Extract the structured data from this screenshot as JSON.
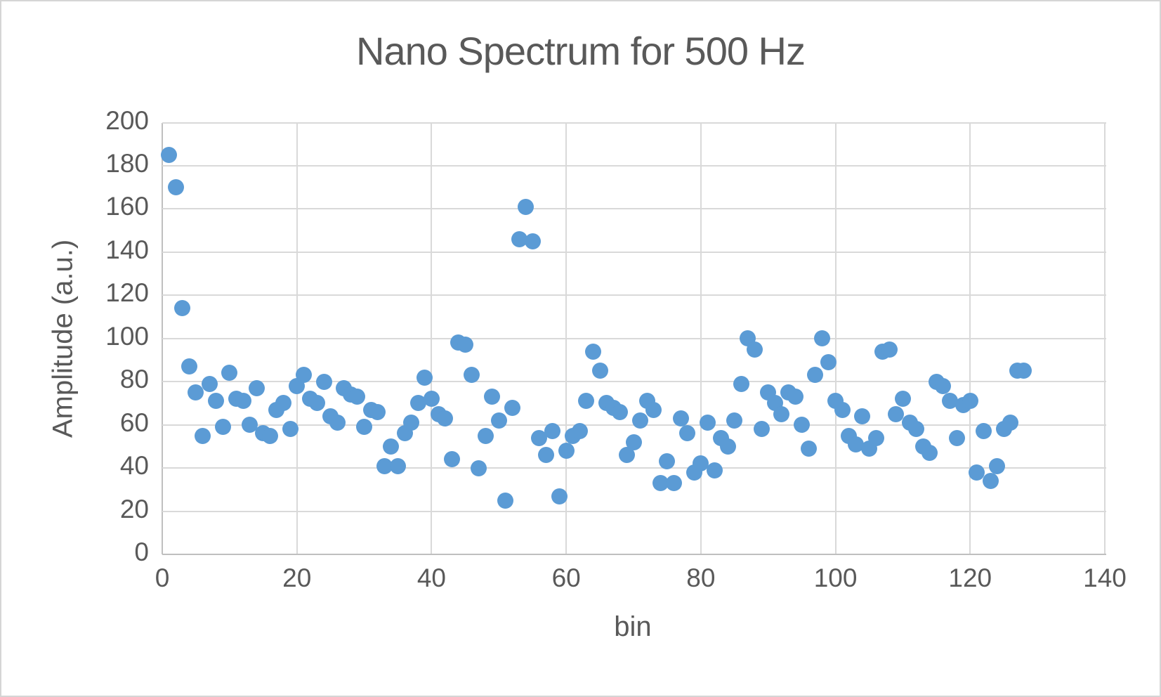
{
  "window": {
    "background": "#ffffff",
    "border_color": "#d5d5d5"
  },
  "chart_data": {
    "type": "scatter",
    "title": "Nano Spectrum for 500 Hz",
    "xlabel": "bin",
    "ylabel": "Amplitude (a.u.)",
    "xlim": [
      0,
      140
    ],
    "ylim": [
      0,
      200
    ],
    "x_ticks": [
      0,
      20,
      40,
      60,
      80,
      100,
      120,
      140
    ],
    "y_ticks": [
      0,
      20,
      40,
      60,
      80,
      100,
      120,
      140,
      160,
      180,
      200
    ],
    "grid": true,
    "legend_position": "none",
    "marker_color": "#5b9bd5",
    "text_color": "#595959",
    "gridline_color": "#d9d9d9",
    "axisline_color": "#bfbfbf",
    "x": [
      1,
      2,
      3,
      4,
      5,
      6,
      7,
      8,
      9,
      10,
      11,
      12,
      13,
      14,
      15,
      16,
      17,
      18,
      19,
      20,
      21,
      22,
      23,
      24,
      25,
      26,
      27,
      28,
      29,
      30,
      31,
      32,
      33,
      34,
      35,
      36,
      37,
      38,
      39,
      40,
      41,
      42,
      43,
      44,
      45,
      46,
      47,
      48,
      49,
      50,
      51,
      52,
      53,
      54,
      55,
      56,
      57,
      58,
      59,
      60,
      61,
      62,
      63,
      64,
      65,
      66,
      67,
      68,
      69,
      70,
      71,
      72,
      73,
      74,
      75,
      76,
      77,
      78,
      79,
      80,
      81,
      82,
      83,
      84,
      85,
      86,
      87,
      88,
      89,
      90,
      91,
      92,
      93,
      94,
      95,
      96,
      97,
      98,
      99,
      100,
      101,
      102,
      103,
      104,
      105,
      106,
      107,
      108,
      109,
      110,
      111,
      112,
      113,
      114,
      115,
      116,
      117,
      118,
      119,
      120,
      121,
      122,
      123,
      124,
      125,
      126,
      127,
      128
    ],
    "y": [
      185,
      170,
      114,
      87,
      75,
      55,
      79,
      71,
      59,
      84,
      72,
      71,
      60,
      77,
      56,
      55,
      67,
      70,
      58,
      78,
      83,
      72,
      70,
      80,
      64,
      61,
      77,
      74,
      73,
      59,
      67,
      66,
      41,
      50,
      41,
      56,
      61,
      70,
      82,
      72,
      65,
      63,
      44,
      98,
      97,
      83,
      40,
      55,
      73,
      62,
      25,
      68,
      146,
      161,
      145,
      54,
      46,
      57,
      27,
      48,
      55,
      57,
      71,
      94,
      85,
      70,
      68,
      66,
      46,
      52,
      62,
      71,
      67,
      33,
      43,
      33,
      63,
      56,
      38,
      42,
      61,
      39,
      54,
      50,
      62,
      79,
      100,
      95,
      58,
      75,
      70,
      65,
      75,
      73,
      60,
      49,
      83,
      100,
      89,
      71,
      67,
      55,
      51,
      64,
      49,
      54,
      94,
      95,
      65,
      72,
      61,
      58,
      50,
      47,
      80,
      78,
      71,
      54,
      69,
      71,
      38,
      57,
      34,
      41,
      58,
      61,
      85,
      85
    ]
  }
}
